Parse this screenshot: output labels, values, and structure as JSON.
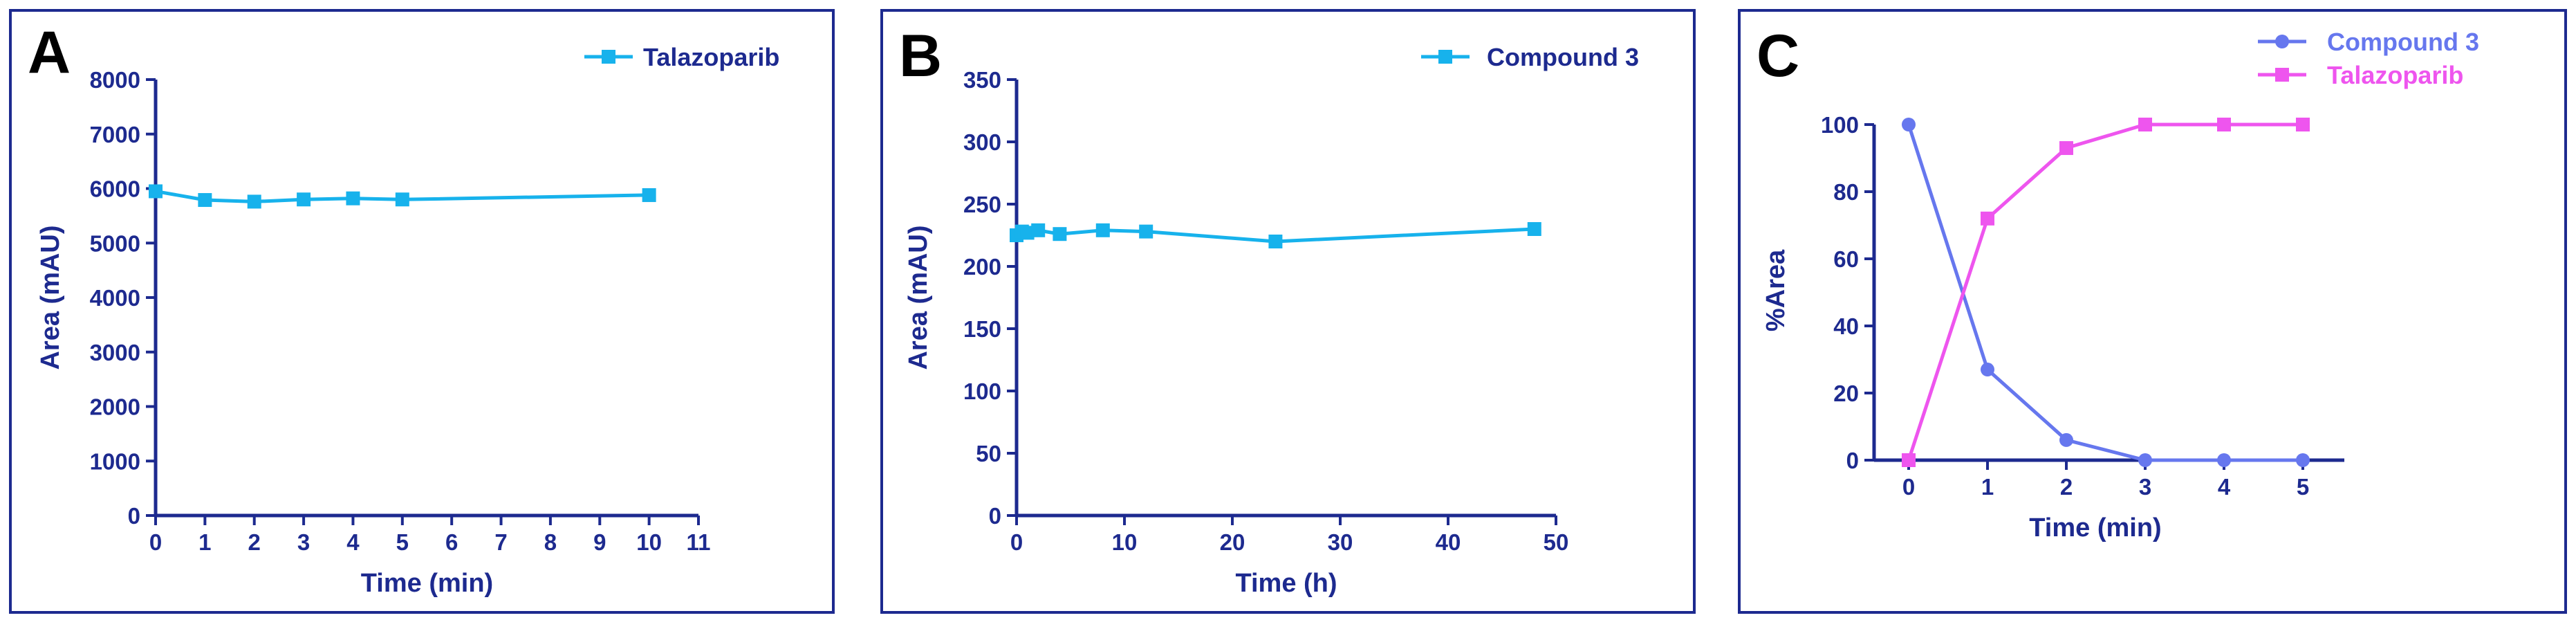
{
  "chart_data": [
    {
      "panel": "A",
      "type": "line",
      "xlabel": "Time (min)",
      "ylabel": "Area (mAU)",
      "xlim": [
        0,
        11
      ],
      "ylim": [
        0,
        8000
      ],
      "xticks": [
        "0",
        "1",
        "2",
        "3",
        "4",
        "5",
        "6",
        "7",
        "8",
        "9",
        "10",
        "11"
      ],
      "yticks": [
        "0",
        "1000",
        "2000",
        "3000",
        "4000",
        "5000",
        "6000",
        "7000",
        "8000"
      ],
      "legend_position": "top-right",
      "grid": false,
      "series": [
        {
          "name": "Talazoparib",
          "color": "#17b2ec",
          "marker": "square",
          "x": [
            0,
            1,
            2,
            3,
            4,
            5,
            10
          ],
          "y": [
            5950,
            5790,
            5760,
            5800,
            5820,
            5800,
            5880
          ]
        }
      ]
    },
    {
      "panel": "B",
      "type": "line",
      "xlabel": "Time (h)",
      "ylabel": "Area (mAU)",
      "xlim": [
        0,
        50
      ],
      "ylim": [
        0,
        350
      ],
      "xticks": [
        "0",
        "10",
        "20",
        "30",
        "40",
        "50"
      ],
      "yticks": [
        "0",
        "50",
        "100",
        "150",
        "200",
        "250",
        "300",
        "350"
      ],
      "legend_position": "top-right",
      "grid": false,
      "series": [
        {
          "name": "Compound 3",
          "color": "#17b2ec",
          "marker": "square",
          "x": [
            0,
            0.5,
            1,
            2,
            4,
            8,
            12,
            24,
            48
          ],
          "y": [
            225,
            228,
            227,
            229,
            226,
            229,
            228,
            220,
            230
          ]
        }
      ]
    },
    {
      "panel": "C",
      "type": "line",
      "xlabel": "Time (min)",
      "ylabel": "%Area",
      "xlim": [
        0,
        5
      ],
      "ylim": [
        0,
        100
      ],
      "xticks": [
        "0",
        "1",
        "2",
        "3",
        "4",
        "5"
      ],
      "yticks": [
        "0",
        "20",
        "40",
        "60",
        "80",
        "100"
      ],
      "legend_position": "top-right",
      "grid": false,
      "series": [
        {
          "name": "Compound 3",
          "color": "#6677ee",
          "marker": "circle",
          "x": [
            0,
            1,
            2,
            3,
            4,
            5
          ],
          "y": [
            100,
            27,
            6,
            0,
            0,
            0
          ]
        },
        {
          "name": "Talazoparib",
          "color": "#ee55ee",
          "marker": "square",
          "x": [
            0,
            1,
            2,
            3,
            4,
            5
          ],
          "y": [
            0,
            72,
            93,
            100,
            100,
            100
          ]
        }
      ]
    }
  ],
  "colors": {
    "axis": "#1d2a8f",
    "frame": "#1d2a8f",
    "letter": "#000000"
  }
}
